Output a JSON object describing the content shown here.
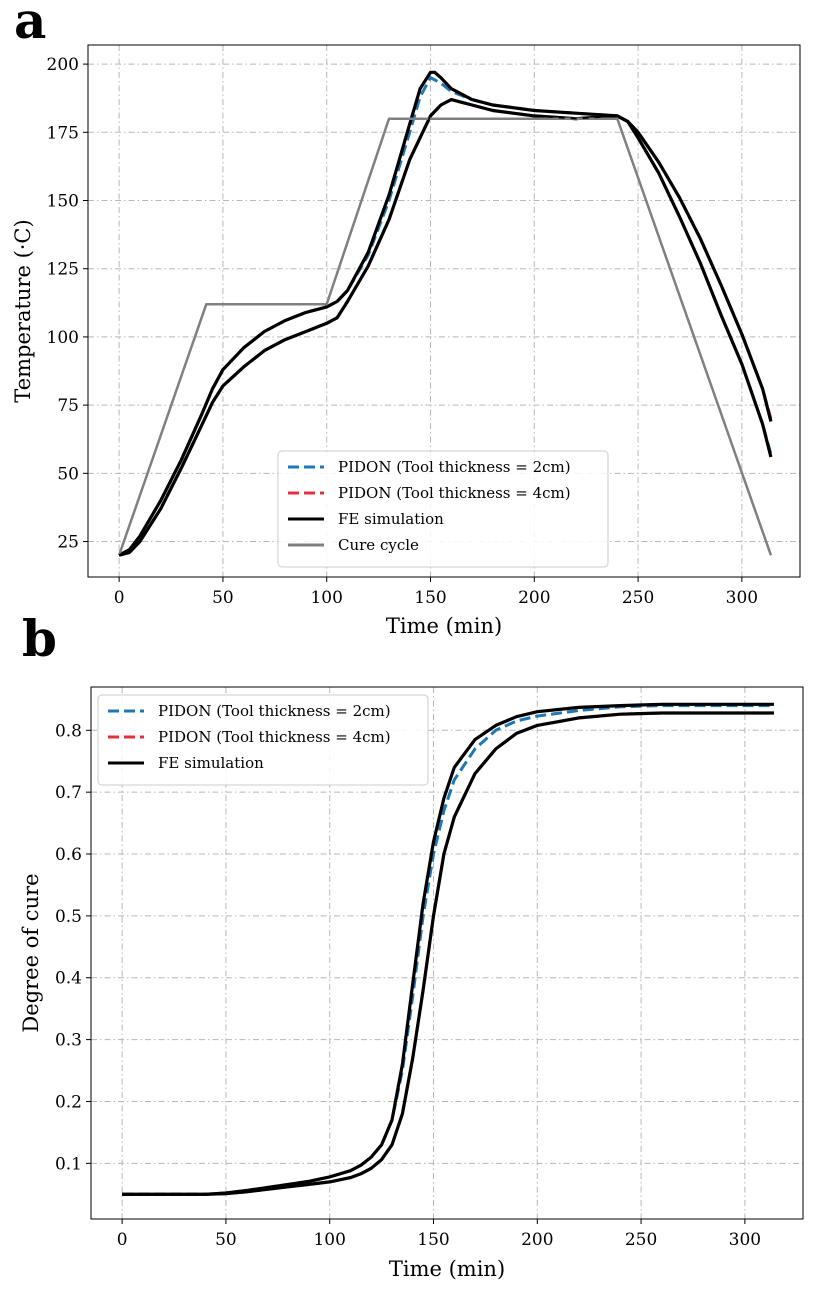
{
  "chart_data": [
    {
      "panel_label": "a",
      "type": "line",
      "xlabel": "Time (min)",
      "ylabel": "Temperature (·C)",
      "xlim": [
        -15,
        328
      ],
      "ylim": [
        12,
        207
      ],
      "xticks": [
        0,
        50,
        100,
        150,
        200,
        250,
        300
      ],
      "yticks": [
        25,
        50,
        75,
        100,
        125,
        150,
        175,
        200
      ],
      "grid": true,
      "legend_position": "lower-center",
      "series": [
        {
          "name": "PIDON (Tool thickness = 2cm)",
          "color": "#1f77b4",
          "style": "dashed",
          "x": [
            0,
            5,
            10,
            20,
            30,
            40,
            45,
            50,
            60,
            70,
            80,
            90,
            100,
            105,
            110,
            120,
            130,
            140,
            145,
            150,
            155,
            160,
            170,
            180,
            200,
            220,
            240,
            245,
            250,
            260,
            270,
            280,
            290,
            300,
            310,
            314
          ],
          "y": [
            20,
            22,
            27,
            40,
            55,
            72,
            81,
            88,
            96,
            102,
            106,
            109,
            111,
            113,
            117,
            130,
            150,
            175,
            188,
            195,
            193,
            190,
            187,
            185,
            183,
            182,
            181,
            179,
            173,
            160,
            144,
            127,
            108,
            90,
            68,
            57
          ]
        },
        {
          "name": "PIDON (Tool thickness = 4cm)",
          "color": "#e0303a",
          "style": "dashed",
          "x": [
            0,
            5,
            10,
            20,
            30,
            40,
            45,
            50,
            60,
            70,
            80,
            90,
            100,
            105,
            110,
            120,
            130,
            140,
            150,
            155,
            160,
            165,
            170,
            180,
            200,
            220,
            240,
            245,
            250,
            260,
            270,
            280,
            290,
            300,
            310,
            314
          ],
          "y": [
            20,
            21,
            25,
            37,
            52,
            68,
            76,
            82,
            89,
            95,
            99,
            102,
            105,
            107,
            113,
            126,
            143,
            165,
            181,
            185,
            187,
            186,
            185,
            183,
            181,
            180,
            181,
            179,
            175,
            164,
            151,
            136,
            119,
            101,
            81,
            70
          ]
        },
        {
          "name": "FE simulation",
          "color": "#000000",
          "style": "solid",
          "x": [
            0,
            5,
            10,
            20,
            30,
            40,
            45,
            50,
            60,
            70,
            80,
            90,
            100,
            105,
            110,
            120,
            130,
            140,
            145,
            150,
            152,
            155,
            160,
            170,
            180,
            200,
            220,
            240,
            245,
            250,
            260,
            270,
            280,
            290,
            300,
            310,
            314
          ],
          "y": [
            20,
            22,
            27,
            40,
            55,
            72,
            81,
            88,
            96,
            102,
            106,
            109,
            111,
            113,
            117,
            131,
            152,
            178,
            191,
            197,
            197,
            195,
            191,
            187,
            185,
            183,
            182,
            181,
            179,
            173,
            160,
            144,
            127,
            108,
            90,
            68,
            56
          ]
        },
        {
          "name": "FE simulation",
          "color": "#000000",
          "style": "solid",
          "legend": false,
          "x": [
            0,
            5,
            10,
            20,
            30,
            40,
            45,
            50,
            60,
            70,
            80,
            90,
            100,
            105,
            110,
            120,
            130,
            140,
            150,
            155,
            160,
            165,
            170,
            180,
            200,
            220,
            240,
            245,
            250,
            260,
            270,
            280,
            290,
            300,
            310,
            314
          ],
          "y": [
            20,
            21,
            25,
            37,
            52,
            68,
            76,
            82,
            89,
            95,
            99,
            102,
            105,
            107,
            113,
            126,
            143,
            165,
            181,
            185,
            187,
            186,
            185,
            183,
            181,
            180,
            181,
            179,
            175,
            164,
            151,
            136,
            119,
            101,
            81,
            69
          ]
        },
        {
          "name": "Cure cycle",
          "color": "#808080",
          "style": "solid",
          "x": [
            0,
            42,
            100,
            130,
            240,
            314
          ],
          "y": [
            20,
            112,
            112,
            180,
            180,
            20
          ]
        }
      ]
    },
    {
      "panel_label": "b",
      "type": "line",
      "xlabel": "Time (min)",
      "ylabel": "Degree of cure",
      "xlim": [
        -15,
        328
      ],
      "ylim": [
        0.01,
        0.87
      ],
      "xticks": [
        0,
        50,
        100,
        150,
        200,
        250,
        300
      ],
      "yticks": [
        0.1,
        0.2,
        0.3,
        0.4,
        0.5,
        0.6,
        0.7,
        0.8
      ],
      "grid": true,
      "legend_position": "upper-left",
      "series": [
        {
          "name": "PIDON (Tool thickness = 2cm)",
          "color": "#1f77b4",
          "style": "dashed",
          "x": [
            0,
            20,
            40,
            50,
            60,
            70,
            80,
            90,
            100,
            110,
            115,
            120,
            125,
            130,
            135,
            140,
            145,
            150,
            155,
            160,
            170,
            180,
            190,
            200,
            220,
            240,
            260,
            280,
            300,
            314
          ],
          "y": [
            0.05,
            0.05,
            0.05,
            0.052,
            0.056,
            0.061,
            0.066,
            0.071,
            0.078,
            0.088,
            0.097,
            0.11,
            0.13,
            0.17,
            0.25,
            0.37,
            0.5,
            0.6,
            0.67,
            0.72,
            0.77,
            0.8,
            0.815,
            0.823,
            0.832,
            0.838,
            0.84,
            0.84,
            0.84,
            0.84
          ]
        },
        {
          "name": "PIDON (Tool thickness = 4cm)",
          "color": "#e0303a",
          "style": "dashed",
          "x": [
            0,
            20,
            40,
            50,
            60,
            70,
            80,
            90,
            100,
            110,
            115,
            120,
            125,
            130,
            135,
            140,
            145,
            150,
            155,
            160,
            170,
            180,
            190,
            200,
            220,
            240,
            260,
            280,
            300,
            314
          ],
          "y": [
            0.05,
            0.05,
            0.05,
            0.051,
            0.054,
            0.058,
            0.062,
            0.066,
            0.07,
            0.077,
            0.083,
            0.092,
            0.106,
            0.13,
            0.18,
            0.27,
            0.38,
            0.5,
            0.6,
            0.66,
            0.73,
            0.77,
            0.795,
            0.808,
            0.82,
            0.826,
            0.828,
            0.828,
            0.828,
            0.828
          ]
        },
        {
          "name": "FE simulation",
          "color": "#000000",
          "style": "solid",
          "x": [
            0,
            20,
            40,
            50,
            60,
            70,
            80,
            90,
            100,
            110,
            115,
            120,
            125,
            130,
            135,
            140,
            145,
            150,
            155,
            160,
            170,
            180,
            190,
            200,
            220,
            240,
            260,
            280,
            300,
            314
          ],
          "y": [
            0.05,
            0.05,
            0.05,
            0.052,
            0.056,
            0.061,
            0.066,
            0.071,
            0.078,
            0.088,
            0.097,
            0.11,
            0.13,
            0.17,
            0.26,
            0.39,
            0.52,
            0.62,
            0.69,
            0.74,
            0.785,
            0.808,
            0.822,
            0.83,
            0.837,
            0.84,
            0.842,
            0.842,
            0.842,
            0.842
          ]
        },
        {
          "name": "FE simulation",
          "color": "#000000",
          "style": "solid",
          "legend": false,
          "x": [
            0,
            20,
            40,
            50,
            60,
            70,
            80,
            90,
            100,
            110,
            115,
            120,
            125,
            130,
            135,
            140,
            145,
            150,
            155,
            160,
            170,
            180,
            190,
            200,
            220,
            240,
            260,
            280,
            300,
            314
          ],
          "y": [
            0.05,
            0.05,
            0.05,
            0.051,
            0.054,
            0.058,
            0.062,
            0.066,
            0.07,
            0.077,
            0.083,
            0.092,
            0.106,
            0.13,
            0.18,
            0.27,
            0.38,
            0.5,
            0.6,
            0.66,
            0.73,
            0.77,
            0.795,
            0.808,
            0.82,
            0.826,
            0.828,
            0.828,
            0.828,
            0.828
          ]
        }
      ]
    }
  ]
}
